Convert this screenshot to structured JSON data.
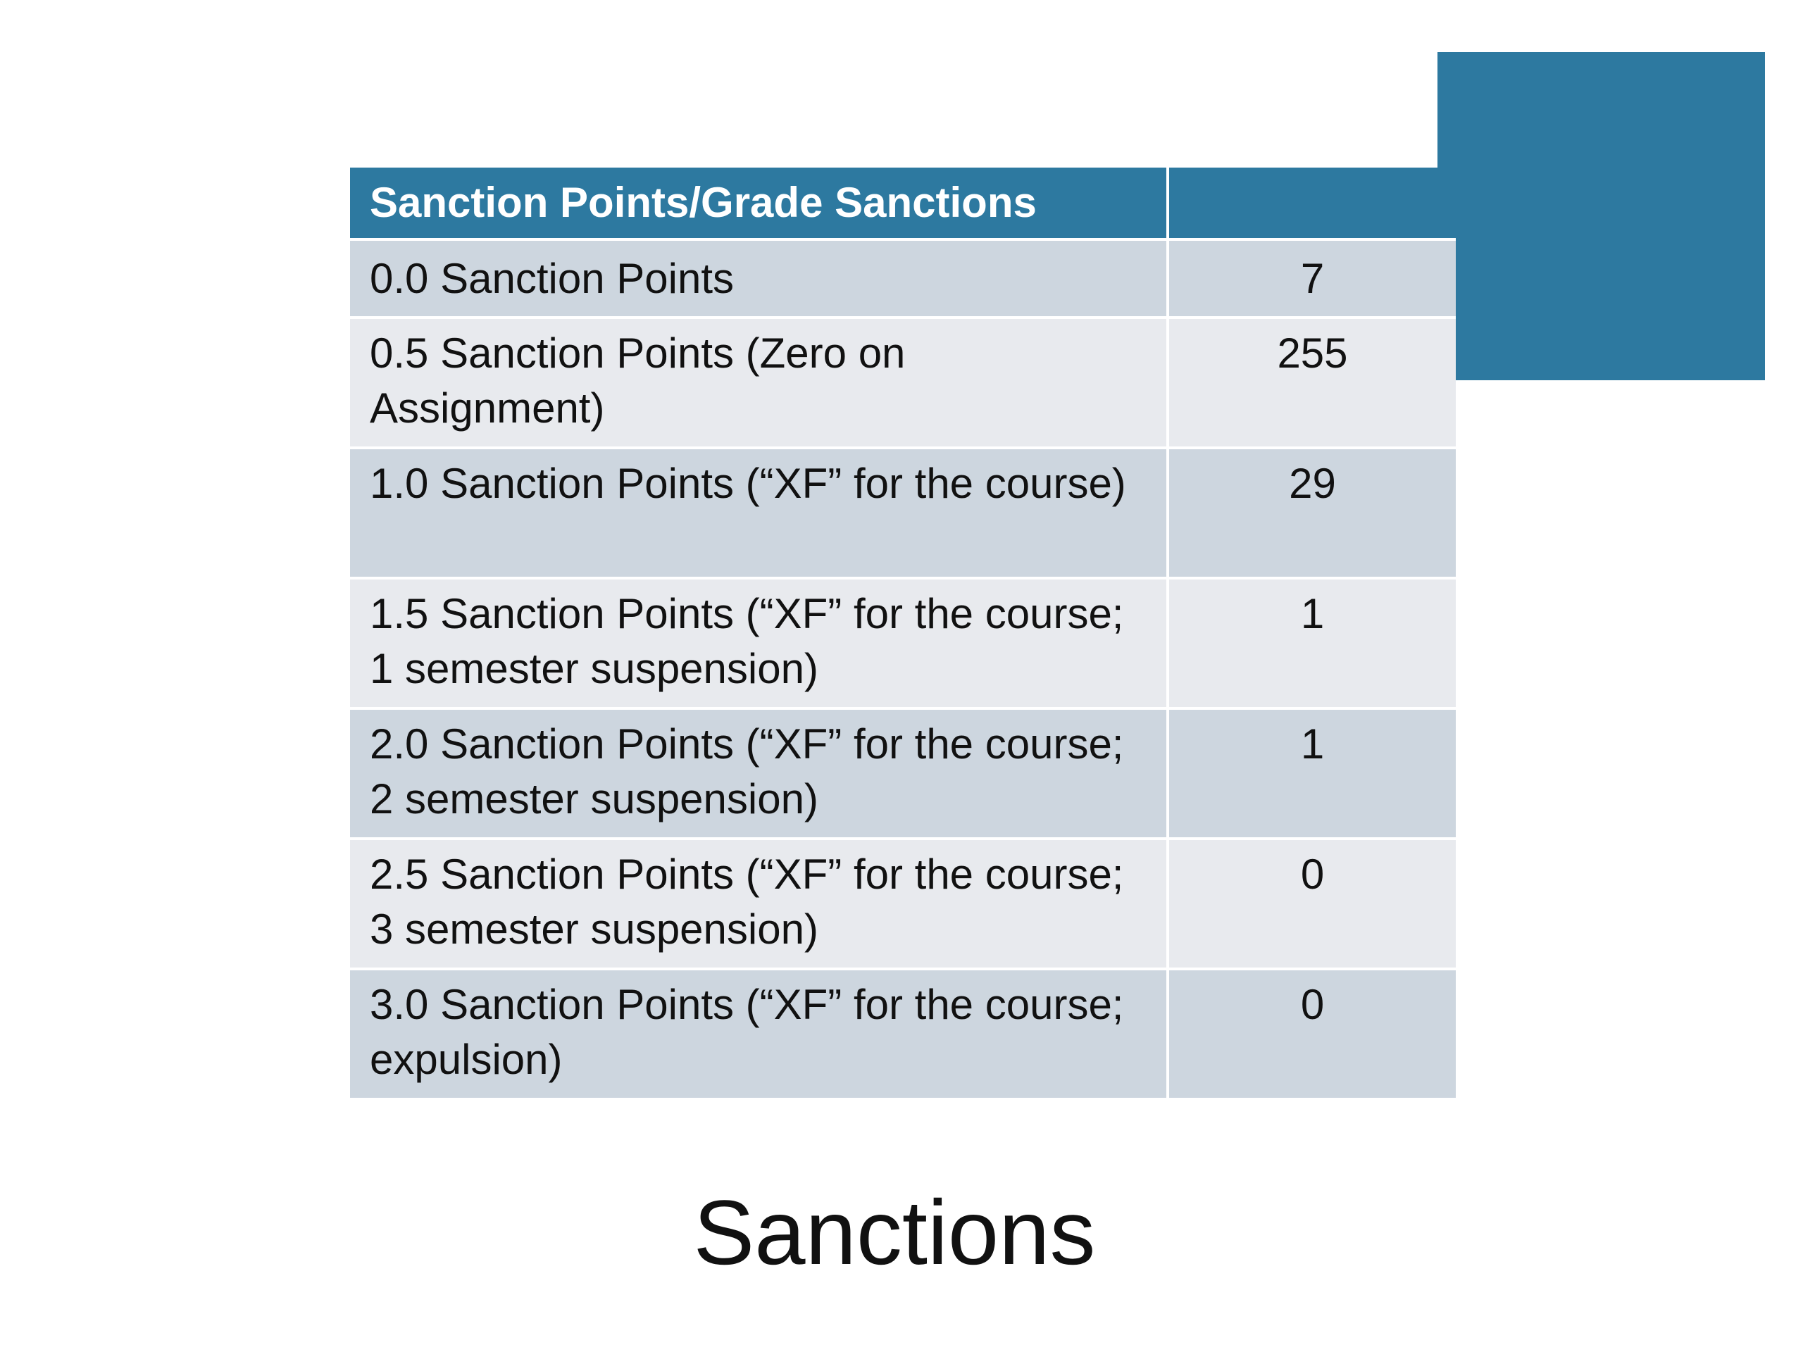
{
  "table": {
    "header": {
      "title": "Sanction Points/Grade Sanctions"
    },
    "rows": [
      [
        "0.0 Sanction Points",
        7
      ],
      [
        "0.5 Sanction Points (Zero on Assignment)",
        255
      ],
      [
        "1.0 Sanction Points (“XF” for the course)",
        29
      ],
      [
        "1.5 Sanction Points (“XF” for the course; 1 semester suspension)",
        1
      ],
      [
        "2.0 Sanction Points (“XF” for the course; 2 semester suspension)",
        1
      ],
      [
        "2.5 Sanction Points (“XF” for the course; 3 semester suspension)",
        0
      ],
      [
        "3.0 Sanction Points (“XF” for the course; expulsion)",
        0
      ]
    ]
  },
  "slide": {
    "title": "Sanctions"
  }
}
